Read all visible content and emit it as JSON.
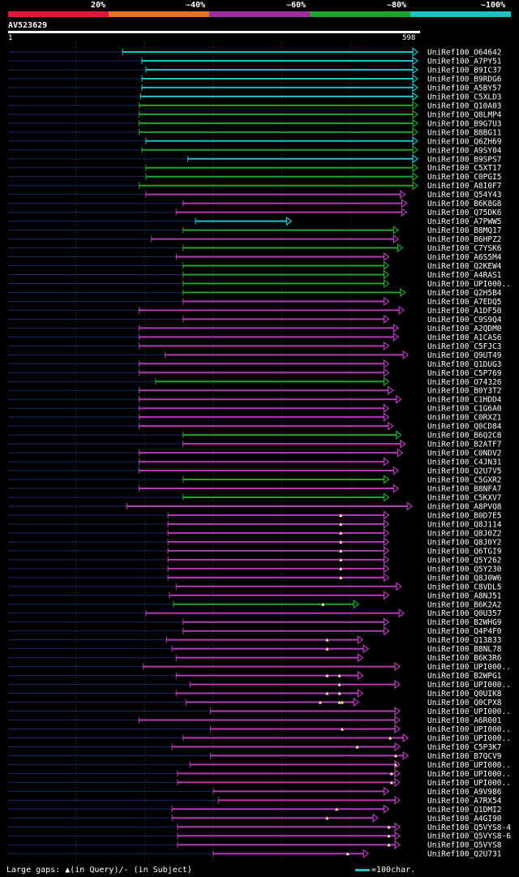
{
  "legend": {
    "labels": [
      "20%",
      "~40%",
      "~60%",
      "~80%",
      "~100%"
    ],
    "colors": [
      "#e5163b",
      "#e87324",
      "#a02ba0",
      "#20a32a",
      "#19c3c8"
    ]
  },
  "query": {
    "name": "AV523629",
    "start_label": "1",
    "end_label": "598",
    "length": 598
  },
  "colors": {
    "cyan": "#19c3c8",
    "green": "#20a32a",
    "magenta": "#b33bb8",
    "dim": "#1a2a66",
    "grid": "#3a3a3a",
    "mark": "#ffff99"
  },
  "chart_data": {
    "type": "alignment",
    "x_range": [
      1,
      598
    ],
    "hits": [
      {
        "name": "UniRef100_O64642",
        "start": 168,
        "end": 598,
        "identity": "cyan",
        "marks": []
      },
      {
        "name": "UniRef100_A7PY51",
        "start": 196,
        "end": 598,
        "identity": "cyan",
        "marks": []
      },
      {
        "name": "UniRef100_B9IC37",
        "start": 202,
        "end": 598,
        "identity": "cyan",
        "marks": []
      },
      {
        "name": "UniRef100_B9RDG6",
        "start": 196,
        "end": 598,
        "identity": "cyan",
        "marks": []
      },
      {
        "name": "UniRef100_A5BY57",
        "start": 196,
        "end": 598,
        "identity": "cyan",
        "marks": []
      },
      {
        "name": "UniRef100_C5XLD3",
        "start": 194,
        "end": 598,
        "identity": "cyan",
        "marks": []
      },
      {
        "name": "UniRef100_Q10A03",
        "start": 192,
        "end": 598,
        "identity": "green",
        "marks": []
      },
      {
        "name": "UniRef100_Q8LMP4",
        "start": 192,
        "end": 598,
        "identity": "green",
        "marks": []
      },
      {
        "name": "UniRef100_B9G7U3",
        "start": 192,
        "end": 598,
        "identity": "green",
        "marks": []
      },
      {
        "name": "UniRef100_B8BG11",
        "start": 192,
        "end": 598,
        "identity": "green",
        "marks": []
      },
      {
        "name": "UniRef100_Q6ZH69",
        "start": 202,
        "end": 598,
        "identity": "cyan",
        "marks": []
      },
      {
        "name": "UniRef100_A9SY04",
        "start": 196,
        "end": 598,
        "identity": "green",
        "marks": []
      },
      {
        "name": "UniRef100_B9SPS7",
        "start": 263,
        "end": 598,
        "identity": "cyan",
        "marks": []
      },
      {
        "name": "UniRef100_C5XT17",
        "start": 202,
        "end": 598,
        "identity": "green",
        "marks": []
      },
      {
        "name": "UniRef100_C0PGI5",
        "start": 202,
        "end": 598,
        "identity": "green",
        "marks": []
      },
      {
        "name": "UniRef100_A8I0F7",
        "start": 192,
        "end": 598,
        "identity": "green",
        "marks": []
      },
      {
        "name": "UniRef100_Q54Y43",
        "start": 202,
        "end": 580,
        "identity": "magenta",
        "marks": []
      },
      {
        "name": "UniRef100_B6K8G8",
        "start": 256,
        "end": 582,
        "identity": "magenta",
        "marks": []
      },
      {
        "name": "UniRef100_Q75DK6",
        "start": 246,
        "end": 582,
        "identity": "magenta",
        "marks": []
      },
      {
        "name": "UniRef100_A7PWW5",
        "start": 274,
        "end": 414,
        "identity": "cyan",
        "marks": []
      },
      {
        "name": "UniRef100_B8MQ17",
        "start": 256,
        "end": 570,
        "identity": "green",
        "marks": []
      },
      {
        "name": "UniRef100_B6HPZ2",
        "start": 210,
        "end": 570,
        "identity": "magenta",
        "marks": []
      },
      {
        "name": "UniRef100_C7YSK6",
        "start": 256,
        "end": 576,
        "identity": "green",
        "marks": []
      },
      {
        "name": "UniRef100_A6S5M4",
        "start": 246,
        "end": 556,
        "identity": "magenta",
        "marks": []
      },
      {
        "name": "UniRef100_Q2KEW4",
        "start": 256,
        "end": 556,
        "identity": "green",
        "marks": []
      },
      {
        "name": "UniRef100_A4RAS1",
        "start": 256,
        "end": 556,
        "identity": "green",
        "marks": []
      },
      {
        "name": "UniRef100_UPI000..",
        "start": 256,
        "end": 556,
        "identity": "green",
        "marks": []
      },
      {
        "name": "UniRef100_Q2H5B4",
        "start": 256,
        "end": 580,
        "identity": "green",
        "marks": []
      },
      {
        "name": "UniRef100_A7EDQ5",
        "start": 256,
        "end": 556,
        "identity": "magenta",
        "marks": []
      },
      {
        "name": "UniRef100_A1DF50",
        "start": 192,
        "end": 578,
        "identity": "magenta",
        "marks": []
      },
      {
        "name": "UniRef100_C9S9Q4",
        "start": 256,
        "end": 556,
        "identity": "magenta",
        "marks": []
      },
      {
        "name": "UniRef100_A2QDM0",
        "start": 192,
        "end": 570,
        "identity": "magenta",
        "marks": []
      },
      {
        "name": "UniRef100_A1CAS6",
        "start": 192,
        "end": 570,
        "identity": "magenta",
        "marks": []
      },
      {
        "name": "UniRef100_C5FJC3",
        "start": 192,
        "end": 556,
        "identity": "magenta",
        "marks": []
      },
      {
        "name": "UniRef100_Q9UT49",
        "start": 230,
        "end": 584,
        "identity": "magenta",
        "marks": []
      },
      {
        "name": "UniRef100_Q1DUG3",
        "start": 192,
        "end": 556,
        "identity": "magenta",
        "marks": []
      },
      {
        "name": "UniRef100_C5P769",
        "start": 192,
        "end": 556,
        "identity": "magenta",
        "marks": []
      },
      {
        "name": "UniRef100_O74326",
        "start": 216,
        "end": 556,
        "identity": "green",
        "marks": []
      },
      {
        "name": "UniRef100_B0Y3T2",
        "start": 192,
        "end": 562,
        "identity": "magenta",
        "marks": []
      },
      {
        "name": "UniRef100_C1HDD4",
        "start": 192,
        "end": 574,
        "identity": "magenta",
        "marks": []
      },
      {
        "name": "UniRef100_C1G6A0",
        "start": 192,
        "end": 556,
        "identity": "magenta",
        "marks": []
      },
      {
        "name": "UniRef100_C0RXZ1",
        "start": 192,
        "end": 556,
        "identity": "magenta",
        "marks": []
      },
      {
        "name": "UniRef100_Q0CD84",
        "start": 192,
        "end": 562,
        "identity": "magenta",
        "marks": []
      },
      {
        "name": "UniRef100_B6Q2C8",
        "start": 256,
        "end": 574,
        "identity": "green",
        "marks": []
      },
      {
        "name": "UniRef100_B2ATF7",
        "start": 256,
        "end": 580,
        "identity": "magenta",
        "marks": []
      },
      {
        "name": "UniRef100_C0NDV2",
        "start": 192,
        "end": 576,
        "identity": "magenta",
        "marks": []
      },
      {
        "name": "UniRef100_C4JN31",
        "start": 192,
        "end": 556,
        "identity": "magenta",
        "marks": []
      },
      {
        "name": "UniRef100_Q2U7V5",
        "start": 192,
        "end": 570,
        "identity": "magenta",
        "marks": []
      },
      {
        "name": "UniRef100_C5GXR2",
        "start": 256,
        "end": 556,
        "identity": "green",
        "marks": []
      },
      {
        "name": "UniRef100_B8NFA7",
        "start": 192,
        "end": 570,
        "identity": "magenta",
        "marks": []
      },
      {
        "name": "UniRef100_C5KXV7",
        "start": 256,
        "end": 556,
        "identity": "green",
        "marks": []
      },
      {
        "name": "UniRef100_A8PVQ8",
        "start": 174,
        "end": 590,
        "identity": "magenta",
        "marks": []
      },
      {
        "name": "UniRef100_B0D7E5",
        "start": 234,
        "end": 556,
        "identity": "magenta",
        "marks": [
          486
        ]
      },
      {
        "name": "UniRef100_Q8J114",
        "start": 234,
        "end": 556,
        "identity": "magenta",
        "marks": [
          486
        ]
      },
      {
        "name": "UniRef100_Q8J0Z2",
        "start": 234,
        "end": 556,
        "identity": "magenta",
        "marks": [
          486
        ]
      },
      {
        "name": "UniRef100_Q8J0Y2",
        "start": 234,
        "end": 556,
        "identity": "magenta",
        "marks": [
          486
        ]
      },
      {
        "name": "UniRef100_Q6TGI9",
        "start": 234,
        "end": 556,
        "identity": "magenta",
        "marks": [
          486
        ]
      },
      {
        "name": "UniRef100_Q5Y262",
        "start": 234,
        "end": 556,
        "identity": "magenta",
        "marks": [
          486
        ]
      },
      {
        "name": "UniRef100_Q5Y230",
        "start": 234,
        "end": 556,
        "identity": "magenta",
        "marks": [
          486
        ]
      },
      {
        "name": "UniRef100_Q8J0W6",
        "start": 234,
        "end": 556,
        "identity": "magenta",
        "marks": [
          486
        ]
      },
      {
        "name": "UniRef100_C8VDL5",
        "start": 246,
        "end": 574,
        "identity": "magenta",
        "marks": []
      },
      {
        "name": "UniRef100_A8NJ51",
        "start": 236,
        "end": 556,
        "identity": "magenta",
        "marks": []
      },
      {
        "name": "UniRef100_B6K2A2",
        "start": 242,
        "end": 512,
        "identity": "green",
        "marks": [
          460
        ]
      },
      {
        "name": "UniRef100_Q0U357",
        "start": 202,
        "end": 578,
        "identity": "magenta",
        "marks": []
      },
      {
        "name": "UniRef100_B2WHG9",
        "start": 256,
        "end": 556,
        "identity": "magenta",
        "marks": []
      },
      {
        "name": "UniRef100_Q4P4F0",
        "start": 256,
        "end": 556,
        "identity": "magenta",
        "marks": []
      },
      {
        "name": "UniRef100_Q13833",
        "start": 232,
        "end": 518,
        "identity": "magenta",
        "marks": [
          466
        ]
      },
      {
        "name": "UniRef100_B8NL78",
        "start": 240,
        "end": 526,
        "identity": "magenta",
        "marks": [
          466
        ]
      },
      {
        "name": "UniRef100_B6K3R6",
        "start": 246,
        "end": 518,
        "identity": "magenta",
        "marks": []
      },
      {
        "name": "UniRef100_UPI000..",
        "start": 198,
        "end": 572,
        "identity": "magenta",
        "marks": []
      },
      {
        "name": "UniRef100_B2WPG1",
        "start": 246,
        "end": 518,
        "identity": "magenta",
        "marks": [
          466,
          484
        ]
      },
      {
        "name": "UniRef100_UPI000..",
        "start": 266,
        "end": 572,
        "identity": "magenta",
        "marks": [
          484
        ]
      },
      {
        "name": "UniRef100_Q0UIK8",
        "start": 246,
        "end": 518,
        "identity": "magenta",
        "marks": [
          466,
          484
        ]
      },
      {
        "name": "UniRef100_Q0CPX8",
        "start": 260,
        "end": 512,
        "identity": "magenta",
        "marks": [
          456,
          484,
          488
        ]
      },
      {
        "name": "UniRef100_UPI000..",
        "start": 296,
        "end": 572,
        "identity": "magenta",
        "marks": []
      },
      {
        "name": "UniRef100_A6R001",
        "start": 192,
        "end": 572,
        "identity": "magenta",
        "marks": []
      },
      {
        "name": "UniRef100_UPI000..",
        "start": 296,
        "end": 572,
        "identity": "magenta",
        "marks": [
          488
        ]
      },
      {
        "name": "UniRef100_UPI000..",
        "start": 256,
        "end": 584,
        "identity": "magenta",
        "marks": [
          558
        ]
      },
      {
        "name": "UniRef100_C5P3K7",
        "start": 240,
        "end": 572,
        "identity": "magenta",
        "marks": [
          510
        ]
      },
      {
        "name": "UniRef100_B7QCV9",
        "start": 296,
        "end": 584,
        "identity": "magenta",
        "marks": [
          566
        ]
      },
      {
        "name": "UniRef100_UPI000..",
        "start": 266,
        "end": 572,
        "identity": "magenta",
        "marks": [
          566
        ]
      },
      {
        "name": "UniRef100_UPI000..",
        "start": 248,
        "end": 572,
        "identity": "magenta",
        "marks": [
          560
        ]
      },
      {
        "name": "UniRef100_UPI000..",
        "start": 248,
        "end": 572,
        "identity": "magenta",
        "marks": [
          560
        ]
      },
      {
        "name": "UniRef100_A9V986",
        "start": 300,
        "end": 556,
        "identity": "magenta",
        "marks": []
      },
      {
        "name": "UniRef100_A7RX54",
        "start": 308,
        "end": 572,
        "identity": "magenta",
        "marks": []
      },
      {
        "name": "UniRef100_Q1DMI2",
        "start": 240,
        "end": 556,
        "identity": "magenta",
        "marks": [
          480
        ]
      },
      {
        "name": "UniRef100_A4GI90",
        "start": 240,
        "end": 540,
        "identity": "magenta",
        "marks": [
          466
        ]
      },
      {
        "name": "UniRef100_Q5VYS8-4",
        "start": 248,
        "end": 572,
        "identity": "magenta",
        "marks": [
          556
        ]
      },
      {
        "name": "UniRef100_Q5VYS8-6",
        "start": 248,
        "end": 572,
        "identity": "magenta",
        "marks": [
          556
        ]
      },
      {
        "name": "UniRef100_Q5VYS8",
        "start": 248,
        "end": 572,
        "identity": "magenta",
        "marks": [
          556
        ]
      },
      {
        "name": "UniRef100_Q2U731",
        "start": 300,
        "end": 526,
        "identity": "magenta",
        "marks": [
          496
        ]
      }
    ]
  },
  "footer": {
    "gaps_text": "Large gaps: ▲(in Query)/- (in Subject)",
    "scale_text": "=100char."
  }
}
